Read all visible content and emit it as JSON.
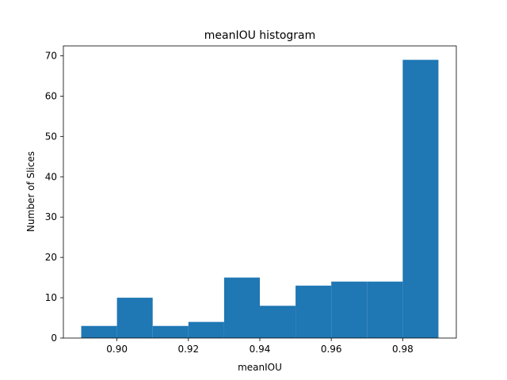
{
  "chart_data": {
    "type": "bar",
    "title": "meanIOU histogram",
    "xlabel": "meanIOU",
    "ylabel": "Number of Slices",
    "bins": [
      {
        "start": 0.89,
        "end": 0.9,
        "value": 3
      },
      {
        "start": 0.9,
        "end": 0.91,
        "value": 10
      },
      {
        "start": 0.91,
        "end": 0.92,
        "value": 3
      },
      {
        "start": 0.92,
        "end": 0.93,
        "value": 4
      },
      {
        "start": 0.93,
        "end": 0.94,
        "value": 15
      },
      {
        "start": 0.94,
        "end": 0.95,
        "value": 8
      },
      {
        "start": 0.95,
        "end": 0.96,
        "value": 13
      },
      {
        "start": 0.96,
        "end": 0.97,
        "value": 14
      },
      {
        "start": 0.97,
        "end": 0.98,
        "value": 14
      },
      {
        "start": 0.98,
        "end": 0.99,
        "value": 69
      }
    ],
    "xlim": [
      0.885,
      0.995
    ],
    "ylim": [
      0,
      72.45
    ],
    "xticks": [
      {
        "value": 0.9,
        "label": "0.90"
      },
      {
        "value": 0.92,
        "label": "0.92"
      },
      {
        "value": 0.94,
        "label": "0.94"
      },
      {
        "value": 0.96,
        "label": "0.96"
      },
      {
        "value": 0.98,
        "label": "0.98"
      }
    ],
    "yticks": [
      {
        "value": 0,
        "label": "0"
      },
      {
        "value": 10,
        "label": "10"
      },
      {
        "value": 20,
        "label": "20"
      },
      {
        "value": 30,
        "label": "30"
      },
      {
        "value": 40,
        "label": "40"
      },
      {
        "value": 50,
        "label": "50"
      },
      {
        "value": 60,
        "label": "60"
      },
      {
        "value": 70,
        "label": "70"
      }
    ],
    "bar_color": "#1f77b4",
    "grid": false,
    "legend": "none"
  }
}
